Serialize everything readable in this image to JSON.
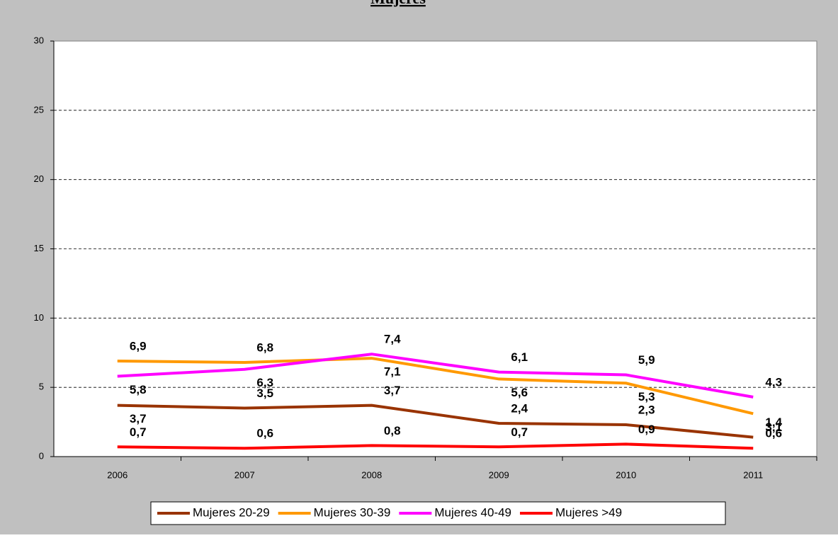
{
  "chart_data": {
    "type": "line",
    "title": "Mujeres",
    "categories": [
      "2006",
      "2007",
      "2008",
      "2009",
      "2010",
      "2011"
    ],
    "series": [
      {
        "name": "Mujeres 20-29",
        "color": "#993300",
        "values": [
          3.7,
          3.5,
          3.7,
          2.4,
          2.3,
          1.4
        ],
        "value_labels": [
          "3,7",
          "3,5",
          "3,7",
          "2,4",
          "2,3",
          "1,4"
        ]
      },
      {
        "name": "Mujeres 30-39",
        "color": "#ff9900",
        "values": [
          6.9,
          6.8,
          7.1,
          5.6,
          5.3,
          3.1
        ],
        "value_labels": [
          "6,9",
          "6,8",
          "7,1",
          "5,6",
          "5,3",
          "3,1"
        ]
      },
      {
        "name": "Mujeres 40-49",
        "color": "#ff00ff",
        "values": [
          5.8,
          6.3,
          7.4,
          6.1,
          5.9,
          4.3
        ],
        "value_labels": [
          "5,8",
          "6,3",
          "7,4",
          "6,1",
          "5,9",
          "4,3"
        ]
      },
      {
        "name": "Mujeres >49",
        "color": "#ff0000",
        "values": [
          0.7,
          0.6,
          0.8,
          0.7,
          0.9,
          0.6
        ],
        "value_labels": [
          "0,7",
          "0,6",
          "0,8",
          "0,7",
          "0,9",
          "0,6"
        ]
      }
    ],
    "ylim": [
      0,
      30
    ],
    "yticks": [
      0,
      5,
      10,
      15,
      20,
      25,
      30
    ],
    "grid": true,
    "legend": "bottom"
  }
}
